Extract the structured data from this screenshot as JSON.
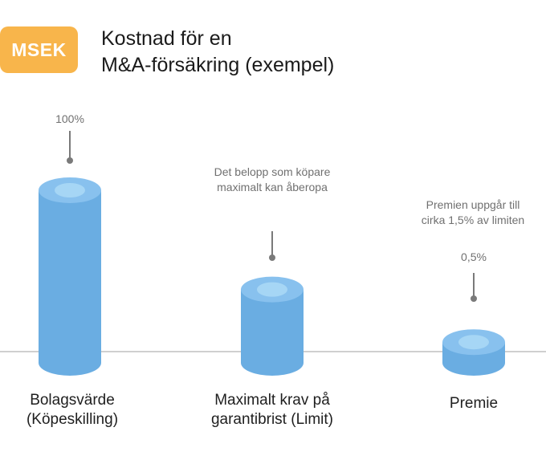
{
  "badge": {
    "label": "MSEK",
    "color": "#f8b54b"
  },
  "header": {
    "title_line1": "Kostnad för en",
    "title_line2": "M&A-försäkring (exempel)"
  },
  "colors": {
    "body": "#6aade2",
    "top": "#88c1ee",
    "inner": "#a6d6f5",
    "baseline": "#cfcfcf",
    "pin": "#7a7a7a"
  },
  "chart_data": {
    "type": "bar",
    "title": "Kostnad för en M&A-försäkring (exempel)",
    "unit": "MSEK",
    "categories": [
      "Bolagsvärde (Köpeskilling)",
      "Maximalt krav på garantibrist (Limit)",
      "Premie"
    ],
    "category_lines": [
      [
        "Bolagsvärde",
        "(Köpeskilling)"
      ],
      [
        "Maximalt krav på",
        "garantibrist (Limit)"
      ],
      [
        "Premie"
      ]
    ],
    "relative_values": [
      1.0,
      0.425,
      0.12
    ],
    "value_labels": [
      "100%",
      "",
      "0,5%"
    ],
    "annotations": [
      [],
      [
        "Det belopp som köpare",
        "maximalt kan åberopa"
      ],
      [
        "Premien uppgår till",
        "cirka 1,5% av limiten"
      ]
    ]
  }
}
